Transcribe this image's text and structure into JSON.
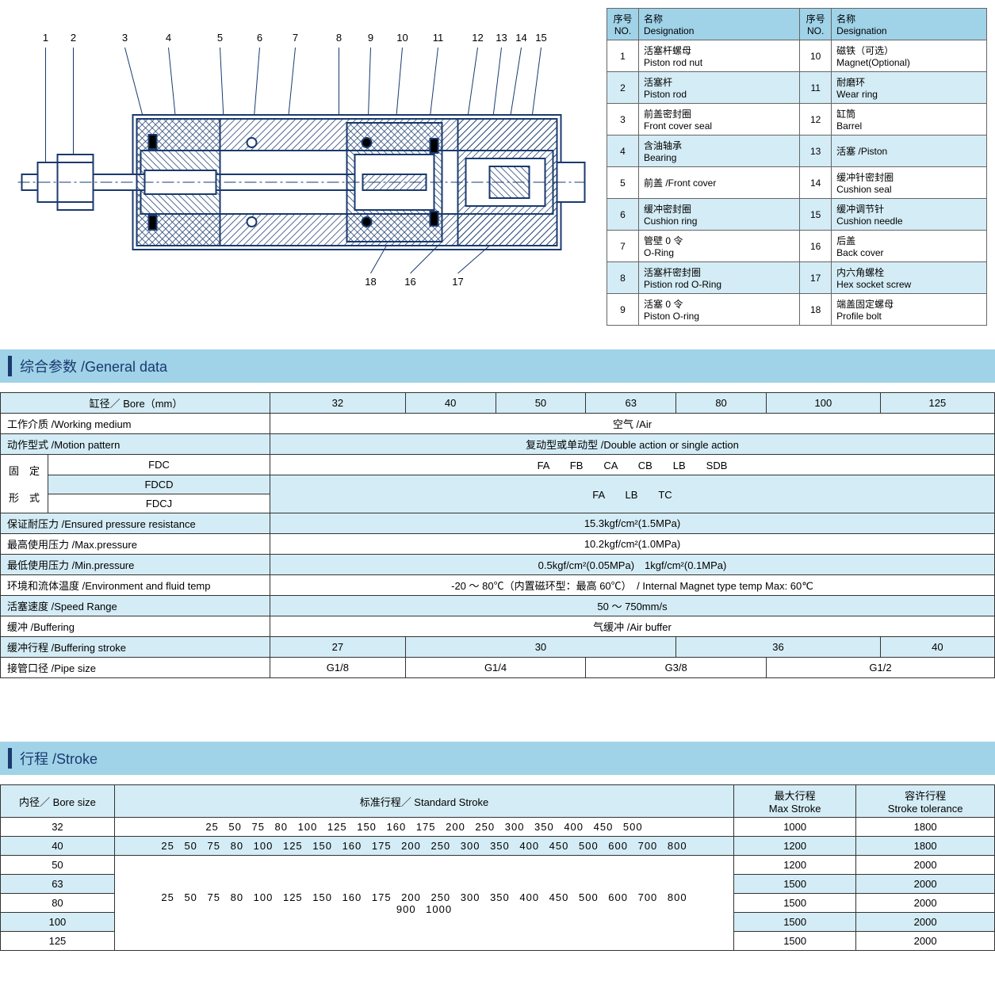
{
  "colors": {
    "header_bg": "#a0d2e8",
    "alt_row": "#d4ecf5",
    "border": "#333333",
    "accent": "#1a3a6e"
  },
  "parts": {
    "header_no": "序号\nNO.",
    "header_name": "名称\nDesignation",
    "rows": [
      {
        "no": "1",
        "cn": "活塞杆螺母",
        "en": "Piston rod nut",
        "no2": "10",
        "cn2": "磁铁（可选）",
        "en2": "Magnet(Optional)"
      },
      {
        "no": "2",
        "cn": "活塞杆",
        "en": "Piston rod",
        "no2": "11",
        "cn2": "耐磨环",
        "en2": "Wear ring"
      },
      {
        "no": "3",
        "cn": "前盖密封圈",
        "en": "Front cover seal",
        "no2": "12",
        "cn2": "缸筒",
        "en2": "Barrel"
      },
      {
        "no": "4",
        "cn": "含油轴承",
        "en": "Bearing",
        "no2": "13",
        "cn2": "活塞 /Piston",
        "en2": ""
      },
      {
        "no": "5",
        "cn": "前盖 /Front cover",
        "en": "",
        "no2": "14",
        "cn2": "缓冲针密封圈",
        "en2": "Cushion seal"
      },
      {
        "no": "6",
        "cn": "缓冲密封圈",
        "en": "Cushion ring",
        "no2": "15",
        "cn2": "缓冲调节针",
        "en2": "Cushion needle"
      },
      {
        "no": "7",
        "cn": "管壁 0 令",
        "en": "O-Ring",
        "no2": "16",
        "cn2": "后盖",
        "en2": "Back cover"
      },
      {
        "no": "8",
        "cn": "活塞杆密封圈",
        "en": "Pistion rod O-Ring",
        "no2": "17",
        "cn2": "内六角螺栓",
        "en2": "Hex socket screw"
      },
      {
        "no": "9",
        "cn": "活塞 0 令",
        "en": "Piston O-ring",
        "no2": "18",
        "cn2": "端盖固定螺母",
        "en2": "Profile bolt"
      }
    ]
  },
  "section_general": "综合参数 /General data",
  "section_stroke": "行程 /Stroke",
  "general": {
    "bore_label": "缸径／ Bore（mm）",
    "bore_values": [
      "32",
      "40",
      "50",
      "63",
      "80",
      "100",
      "125"
    ],
    "rows": [
      {
        "label": "工作介质 /Working medium",
        "value": "空气 /Air",
        "alt": false
      },
      {
        "label": "动作型式 /Motion pattern",
        "value": "复动型或单动型 /Double action or single action",
        "alt": true
      }
    ],
    "fixed_label_cn": "固　定",
    "fixed_label_en": "形　式",
    "fdc_label": "FDC",
    "fdc_value": "FA　　FB　　CA　　CB　　LB　　SDB",
    "fdcd_label": "FDCD",
    "fdcj_label": "FDCJ",
    "fdcd_value": "FA　　LB　　TC",
    "rows2": [
      {
        "label": "保证耐压力 /Ensured pressure resistance",
        "value": "15.3kgf/cm²(1.5MPa)",
        "alt": true
      },
      {
        "label": "最高使用压力 /Max.pressure",
        "value": "10.2kgf/cm²(1.0MPa)",
        "alt": false
      },
      {
        "label": "最低使用压力 /Min.pressure",
        "value": "0.5kgf/cm²(0.05MPa)　1kgf/cm²(0.1MPa)",
        "alt": true
      },
      {
        "label": "环境和流体温度 /Environment and fluid temp",
        "value": "-20 ～ 80℃（内置磁环型：最高 60℃）　/ Internal Magnet type temp Max: 60℃",
        "alt": false
      },
      {
        "label": "活塞速度 /Speed Range",
        "value": "50 ～ 750mm/s",
        "alt": true
      },
      {
        "label": "缓冲 /Buffering",
        "value": "气缓冲 /Air buffer",
        "alt": false
      }
    ],
    "buffering_stroke_label": "缓冲行程 /Buffering stroke",
    "buffering_stroke_values": [
      "27",
      "30",
      "36",
      "40"
    ],
    "buffering_spans": [
      1,
      3,
      2,
      1
    ],
    "pipe_label": "接管口径 /Pipe size",
    "pipe_values": [
      "G1/8",
      "G1/4",
      "G3/8",
      "G1/2"
    ],
    "pipe_spans": [
      1,
      2,
      2,
      2
    ]
  },
  "stroke": {
    "bore_label": "内径／ Bore size",
    "std_label": "标准行程／ Standard Stroke",
    "max_label_cn": "最大行程",
    "max_label_en": "Max Stroke",
    "tol_label_cn": "容许行程",
    "tol_label_en": "Stroke tolerance",
    "rows": [
      {
        "bore": "32",
        "std": "25  50  75  80  100  125  150  160  175  200  250  300  350  400  450  500",
        "max": "1000",
        "tol": "1800",
        "alt": false,
        "rowspan": 1
      },
      {
        "bore": "40",
        "std": "25  50  75  80  100  125  150  160  175  200  250  300  350  400  450  500  600  700  800",
        "max": "1200",
        "tol": "1800",
        "alt": true,
        "rowspan": 1
      },
      {
        "bore": "50",
        "std_multi": "25  50  75  80  100  125  150  160  175  200  250  300  350  400  450  500  600  700  800\n900  1000",
        "max": "1200",
        "tol": "2000",
        "alt": false,
        "rowspan": 5
      },
      {
        "bore": "63",
        "max": "1500",
        "tol": "2000",
        "alt": true
      },
      {
        "bore": "80",
        "max": "1500",
        "tol": "2000",
        "alt": false
      },
      {
        "bore": "100",
        "max": "1500",
        "tol": "2000",
        "alt": true
      },
      {
        "bore": "125",
        "max": "1500",
        "tol": "2000",
        "alt": false
      }
    ]
  },
  "diagram": {
    "top_labels": [
      "1",
      "2",
      "3",
      "4",
      "5",
      "6",
      "7",
      "8",
      "9",
      "10",
      "11",
      "12",
      "13",
      "14",
      "15"
    ],
    "bottom_labels": [
      "18",
      "16",
      "17"
    ],
    "hatch_color": "#1a3a6e",
    "line_color": "#1a3a6e",
    "label_fontsize": 13
  }
}
